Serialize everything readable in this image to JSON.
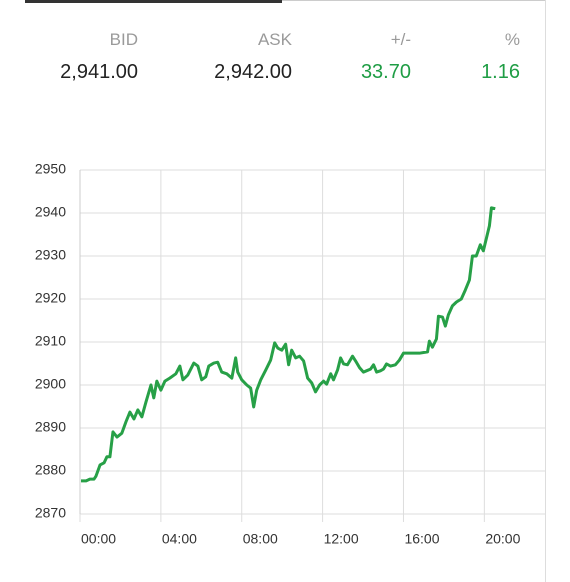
{
  "quote": {
    "columns": [
      {
        "label": "BID",
        "value": "2,941.00"
      },
      {
        "label": "ASK",
        "value": "2,942.00"
      },
      {
        "label": "+/-",
        "value": "33.70"
      },
      {
        "label": "%",
        "value": "1.16"
      }
    ]
  },
  "chart_data": {
    "type": "line",
    "color": "#27a047",
    "grid": true,
    "xlim": [
      0,
      23
    ],
    "ylim": [
      2870,
      2950
    ],
    "yticks": [
      2870,
      2880,
      2890,
      2900,
      2910,
      2920,
      2930,
      2940,
      2950
    ],
    "xticks": [
      {
        "value": 0,
        "label": "00:00"
      },
      {
        "value": 4,
        "label": "04:00"
      },
      {
        "value": 8,
        "label": "08:00"
      },
      {
        "value": 12,
        "label": "12:00"
      },
      {
        "value": 16,
        "label": "16:00"
      },
      {
        "value": 20,
        "label": "20:00"
      }
    ],
    "x": [
      0.05,
      0.3,
      0.49,
      0.69,
      0.79,
      0.99,
      1.19,
      1.33,
      1.48,
      1.63,
      1.83,
      2.07,
      2.27,
      2.47,
      2.67,
      2.86,
      3.06,
      3.26,
      3.51,
      3.65,
      3.8,
      4.0,
      4.2,
      4.44,
      4.74,
      4.94,
      5.09,
      5.33,
      5.63,
      5.83,
      6.02,
      6.22,
      6.37,
      6.62,
      6.81,
      7.01,
      7.26,
      7.51,
      7.7,
      7.8,
      8.0,
      8.25,
      8.44,
      8.59,
      8.74,
      8.94,
      9.19,
      9.43,
      9.63,
      9.78,
      9.98,
      10.17,
      10.32,
      10.47,
      10.67,
      10.86,
      11.06,
      11.26,
      11.46,
      11.65,
      11.85,
      12.05,
      12.2,
      12.4,
      12.54,
      12.74,
      12.89,
      13.04,
      13.23,
      13.48,
      13.63,
      13.83,
      14.02,
      14.17,
      14.37,
      14.52,
      14.67,
      14.86,
      15.01,
      15.16,
      15.36,
      15.6,
      15.8,
      16.0,
      16.2,
      16.79,
      17.19,
      17.28,
      17.43,
      17.63,
      17.73,
      17.93,
      18.07,
      18.22,
      18.42,
      18.62,
      18.86,
      19.06,
      19.26,
      19.41,
      19.6,
      19.8,
      19.95,
      20.25,
      20.35,
      20.54
    ],
    "values": [
      2877.7,
      2877.7,
      2878.1,
      2878.1,
      2878.8,
      2881.4,
      2881.9,
      2883.3,
      2883.3,
      2889.1,
      2887.9,
      2888.8,
      2891.4,
      2893.7,
      2892.1,
      2894.2,
      2892.6,
      2896.0,
      2900.0,
      2897.0,
      2900.9,
      2898.8,
      2900.9,
      2901.6,
      2902.6,
      2904.4,
      2901.2,
      2902.3,
      2905.1,
      2904.4,
      2901.2,
      2901.9,
      2904.4,
      2905.1,
      2905.3,
      2903.0,
      2902.6,
      2901.6,
      2906.3,
      2903.0,
      2901.2,
      2900.0,
      2899.3,
      2894.9,
      2898.8,
      2901.2,
      2903.5,
      2905.8,
      2909.8,
      2908.6,
      2908.1,
      2909.5,
      2904.7,
      2908.1,
      2906.3,
      2906.7,
      2905.6,
      2901.6,
      2900.5,
      2898.4,
      2900.0,
      2900.9,
      2900.2,
      2902.6,
      2901.2,
      2903.5,
      2906.3,
      2904.9,
      2904.7,
      2906.7,
      2905.6,
      2904.0,
      2903.0,
      2903.3,
      2903.7,
      2904.7,
      2903.0,
      2903.3,
      2903.7,
      2904.9,
      2904.4,
      2904.7,
      2905.8,
      2907.4,
      2907.4,
      2907.4,
      2907.7,
      2910.2,
      2908.8,
      2910.7,
      2916.0,
      2915.8,
      2913.7,
      2916.3,
      2918.4,
      2919.3,
      2920.0,
      2922.1,
      2924.4,
      2930.0,
      2930.0,
      2932.6,
      2931.2,
      2937.0,
      2941.2,
      2941.0
    ]
  }
}
